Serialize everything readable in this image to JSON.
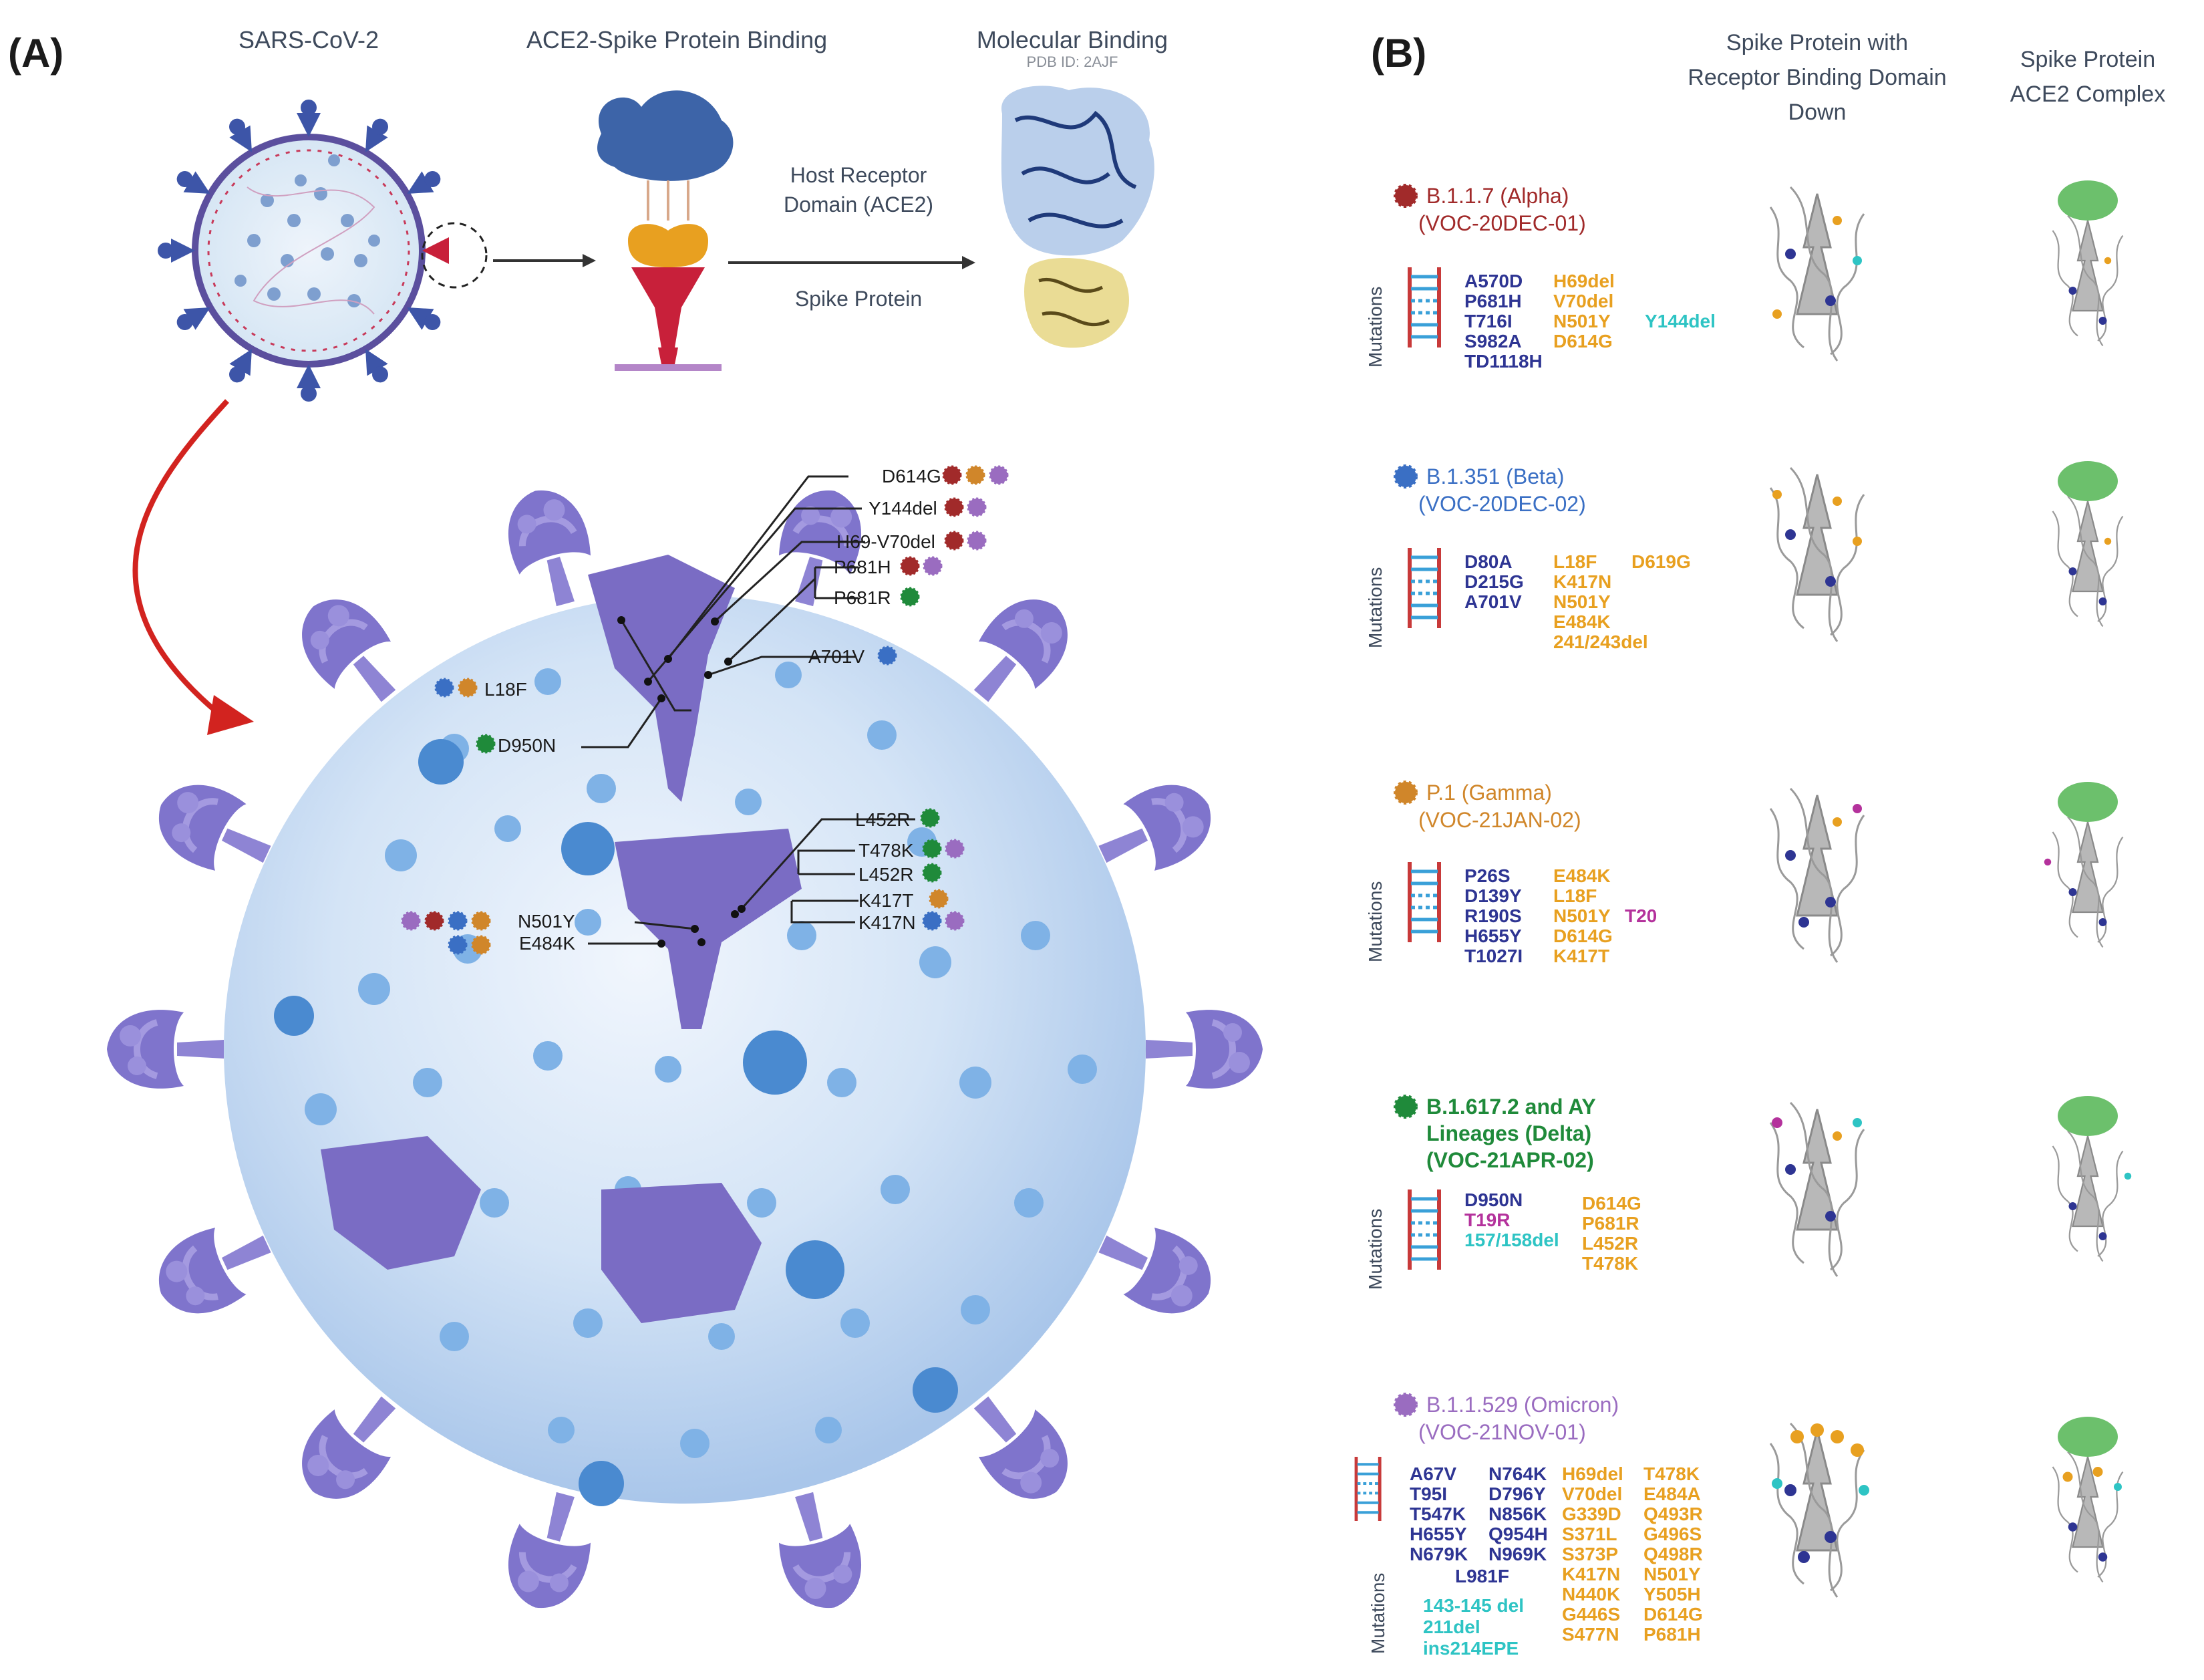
{
  "panel_a": {
    "label": "(A)",
    "headers": {
      "virus": "SARS-CoV-2",
      "binding": "ACE2-Spike Protein Binding",
      "molecular": "Molecular Binding",
      "pdb": "PDB ID: 2AJF"
    },
    "host_receptor_line1": "Host Receptor",
    "host_receptor_line2": "Domain (ACE2)",
    "spike_protein": "Spike Protein",
    "mutation_labels": {
      "d614g": "D614G",
      "y144del": "Y144del",
      "h69v70del": "H69-V70del",
      "p681h": "P681H",
      "p681r": "P681R",
      "a701v": "A701V",
      "l18f": "L18F",
      "d950n": "D950N",
      "l452r_a": "L452R",
      "t478k": "T478K",
      "l452r_b": "L452R",
      "k417t": "K417T",
      "n501y": "N501Y",
      "k417n": "K417N",
      "e484k": "E484K"
    }
  },
  "panel_b": {
    "label": "(B)",
    "col1_line1": "Spike Protein with",
    "col1_line2": "Receptor Binding Domain",
    "col1_line3": "Down",
    "col2_line1": "Spike Protein",
    "col2_line2": "ACE2 Complex",
    "mutations_label": "Mutations",
    "variants": [
      {
        "name1": "B.1.1.7 (Alpha)",
        "name2": "(VOC-20DEC-01)",
        "color": "#a12a2a",
        "blue": [
          "A570D",
          "P681H",
          "T716I",
          "S982A",
          "TD1118H"
        ],
        "orange": [
          "H69del",
          "V70del",
          "N501Y",
          "D614G"
        ],
        "cyan": [
          "Y144del"
        ]
      },
      {
        "name1": "B.1.351 (Beta)",
        "name2": "(VOC-20DEC-02)",
        "color": "#3a6fc4",
        "blue": [
          "D80A",
          "D215G",
          "A701V"
        ],
        "orange": [
          "L18F",
          "K417N",
          "N501Y",
          "E484K",
          "241/243del"
        ],
        "orange2": [
          "D619G"
        ]
      },
      {
        "name1": "P.1 (Gamma)",
        "name2": "(VOC-21JAN-02)",
        "color": "#d0862a",
        "blue": [
          "P26S",
          "D139Y",
          "R190S",
          "H655Y",
          "T1027I"
        ],
        "orange": [
          "E484K",
          "L18F",
          "N501Y",
          "D614G",
          "K417T"
        ],
        "magenta": [
          "T20"
        ]
      },
      {
        "name1": "B.1.617.2 and AY",
        "name2": "Lineages (Delta)",
        "name3": "(VOC-21APR-02)",
        "color": "#1f8a3a",
        "blue": [
          "D950N"
        ],
        "magenta": [
          "T19R"
        ],
        "cyan": [
          "157/158del"
        ],
        "orange": [
          "D614G",
          "P681R",
          "L452R",
          "T478K"
        ]
      },
      {
        "name1": "B.1.1.529 (Omicron)",
        "name2": "(VOC-21NOV-01)",
        "color": "#9a6cc0",
        "blue1": [
          "A67V",
          "T95I",
          "T547K",
          "H655Y",
          "N679K"
        ],
        "blue2": [
          "N764K",
          "D796Y",
          "N856K",
          "Q954H",
          "N969K"
        ],
        "blue3": [
          "L981F"
        ],
        "orange1": [
          "H69del",
          "V70del",
          "G339D",
          "S371L",
          "S373P",
          "K417N",
          "N440K",
          "G446S",
          "S477N"
        ],
        "orange2": [
          "T478K",
          "E484A",
          "Q493R",
          "G496S",
          "Q498R",
          "N501Y",
          "Y505H",
          "D614G",
          "P681H"
        ],
        "cyan": [
          "143-145 del",
          "211del",
          "ins214EPE"
        ]
      }
    ]
  },
  "colors": {
    "alpha": "#a12a2a",
    "beta": "#3a6fc4",
    "gamma": "#d0862a",
    "delta": "#1f8a3a",
    "omicron": "#9a6cc0",
    "spike": "#7a6cc4",
    "virus_surface": "#c9def2"
  }
}
